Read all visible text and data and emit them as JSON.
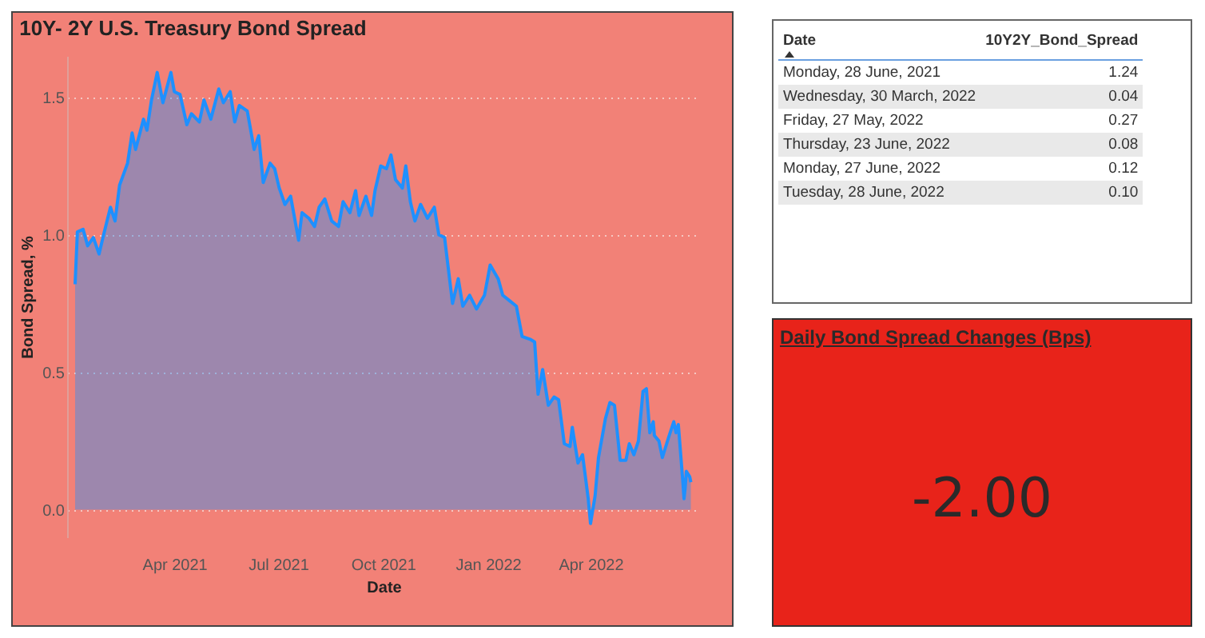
{
  "chart_data": [
    {
      "type": "area",
      "title": "10Y- 2Y U.S. Treasury Bond Spread",
      "xlabel": "Date",
      "ylabel": "Bond Spread, %",
      "x": [
        "2021-01-04",
        "2021-01-06",
        "2021-01-11",
        "2021-01-15",
        "2021-01-20",
        "2021-01-25",
        "2021-01-29",
        "2021-02-04",
        "2021-02-08",
        "2021-02-12",
        "2021-02-19",
        "2021-02-23",
        "2021-02-26",
        "2021-03-05",
        "2021-03-08",
        "2021-03-12",
        "2021-03-17",
        "2021-03-22",
        "2021-03-29",
        "2021-04-01",
        "2021-04-06",
        "2021-04-12",
        "2021-04-16",
        "2021-04-23",
        "2021-04-27",
        "2021-05-03",
        "2021-05-10",
        "2021-05-14",
        "2021-05-20",
        "2021-05-24",
        "2021-05-28",
        "2021-06-04",
        "2021-06-10",
        "2021-06-14",
        "2021-06-18",
        "2021-06-24",
        "2021-06-28",
        "2021-07-02",
        "2021-07-07",
        "2021-07-12",
        "2021-07-19",
        "2021-07-22",
        "2021-07-28",
        "2021-08-02",
        "2021-08-06",
        "2021-08-11",
        "2021-08-17",
        "2021-08-23",
        "2021-08-27",
        "2021-09-02",
        "2021-09-07",
        "2021-09-10",
        "2021-09-16",
        "2021-09-21",
        "2021-09-24",
        "2021-09-29",
        "2021-10-04",
        "2021-10-08",
        "2021-10-12",
        "2021-10-18",
        "2021-10-21",
        "2021-10-25",
        "2021-10-29",
        "2021-11-03",
        "2021-11-09",
        "2021-11-15",
        "2021-11-19",
        "2021-11-24",
        "2021-12-01",
        "2021-12-06",
        "2021-12-10",
        "2021-12-16",
        "2021-12-22",
        "2021-12-29",
        "2022-01-03",
        "2022-01-10",
        "2022-01-14",
        "2022-01-20",
        "2022-01-26",
        "2022-01-31",
        "2022-02-07",
        "2022-02-11",
        "2022-02-14",
        "2022-02-18",
        "2022-02-23",
        "2022-02-28",
        "2022-03-04",
        "2022-03-09",
        "2022-03-14",
        "2022-03-16",
        "2022-03-21",
        "2022-03-25",
        "2022-03-30",
        "2022-04-01",
        "2022-04-05",
        "2022-04-08",
        "2022-04-14",
        "2022-04-18",
        "2022-04-22",
        "2022-04-27",
        "2022-05-02",
        "2022-05-05",
        "2022-05-09",
        "2022-05-13",
        "2022-05-17",
        "2022-05-20",
        "2022-05-23",
        "2022-05-26",
        "2022-05-27",
        "2022-05-31",
        "2022-06-03",
        "2022-06-09",
        "2022-06-13",
        "2022-06-15",
        "2022-06-17",
        "2022-06-21",
        "2022-06-22",
        "2022-06-23",
        "2022-06-24",
        "2022-06-27",
        "2022-06-28"
      ],
      "series": [
        {
          "color": "#1e90ff",
          "values": [
            0.82,
            1.01,
            1.02,
            0.96,
            0.99,
            0.93,
            1.0,
            1.1,
            1.05,
            1.18,
            1.26,
            1.37,
            1.31,
            1.42,
            1.38,
            1.49,
            1.59,
            1.48,
            1.59,
            1.52,
            1.51,
            1.4,
            1.44,
            1.41,
            1.49,
            1.42,
            1.53,
            1.48,
            1.52,
            1.41,
            1.47,
            1.45,
            1.31,
            1.36,
            1.19,
            1.26,
            1.24,
            1.17,
            1.11,
            1.14,
            0.98,
            1.08,
            1.06,
            1.03,
            1.1,
            1.13,
            1.05,
            1.03,
            1.12,
            1.08,
            1.16,
            1.07,
            1.14,
            1.07,
            1.16,
            1.25,
            1.24,
            1.29,
            1.2,
            1.17,
            1.25,
            1.12,
            1.05,
            1.11,
            1.06,
            1.1,
            1.0,
            0.99,
            0.75,
            0.84,
            0.74,
            0.78,
            0.73,
            0.78,
            0.89,
            0.84,
            0.78,
            0.76,
            0.74,
            0.63,
            0.62,
            0.61,
            0.42,
            0.51,
            0.38,
            0.41,
            0.4,
            0.24,
            0.23,
            0.3,
            0.17,
            0.2,
            0.04,
            -0.05,
            0.05,
            0.19,
            0.33,
            0.39,
            0.38,
            0.18,
            0.18,
            0.24,
            0.2,
            0.25,
            0.43,
            0.44,
            0.28,
            0.32,
            0.27,
            0.25,
            0.19,
            0.27,
            0.32,
            0.28,
            0.31,
            0.1,
            0.04,
            0.08,
            0.14,
            0.12,
            0.1
          ]
        }
      ],
      "xlim": [
        "2020-12-28",
        "2022-07-06"
      ],
      "xticks": [
        {
          "value": "2021-04-01",
          "label": "Apr 2021"
        },
        {
          "value": "2021-07-01",
          "label": "Jul 2021"
        },
        {
          "value": "2021-10-01",
          "label": "Oct 2021"
        },
        {
          "value": "2022-01-01",
          "label": "Jan 2022"
        },
        {
          "value": "2022-04-01",
          "label": "Apr 2022"
        }
      ],
      "ylim": [
        -0.1,
        1.65
      ],
      "yticks": [
        {
          "value": 0,
          "label": "0.0"
        },
        {
          "value": 0.5,
          "label": "0.5"
        },
        {
          "value": 1,
          "label": "1.0"
        },
        {
          "value": 1.5,
          "label": "1.5"
        }
      ],
      "grid": "y"
    },
    {
      "type": "other",
      "xlabel": "Date",
      "ylabel": "10Y2Y_Bond_Spread",
      "categories": [
        "Monday, 28 June, 2021",
        "Wednesday, 30 March, 2022",
        "Friday, 27 May, 2022",
        "Thursday, 23 June, 2022",
        "Monday, 27 June, 2022",
        "Tuesday, 28 June, 2022"
      ],
      "values": [
        1.24,
        0.04,
        0.27,
        0.08,
        0.12,
        0.1
      ],
      "value_labels": [
        "1.24",
        "0.04",
        "0.27",
        "0.08",
        "0.12",
        "0.10"
      ]
    },
    {
      "type": "other",
      "title": "Daily Bond Spread Changes (Bps)",
      "values": [
        -2.0
      ],
      "value_labels": [
        "-2.00"
      ]
    }
  ]
}
